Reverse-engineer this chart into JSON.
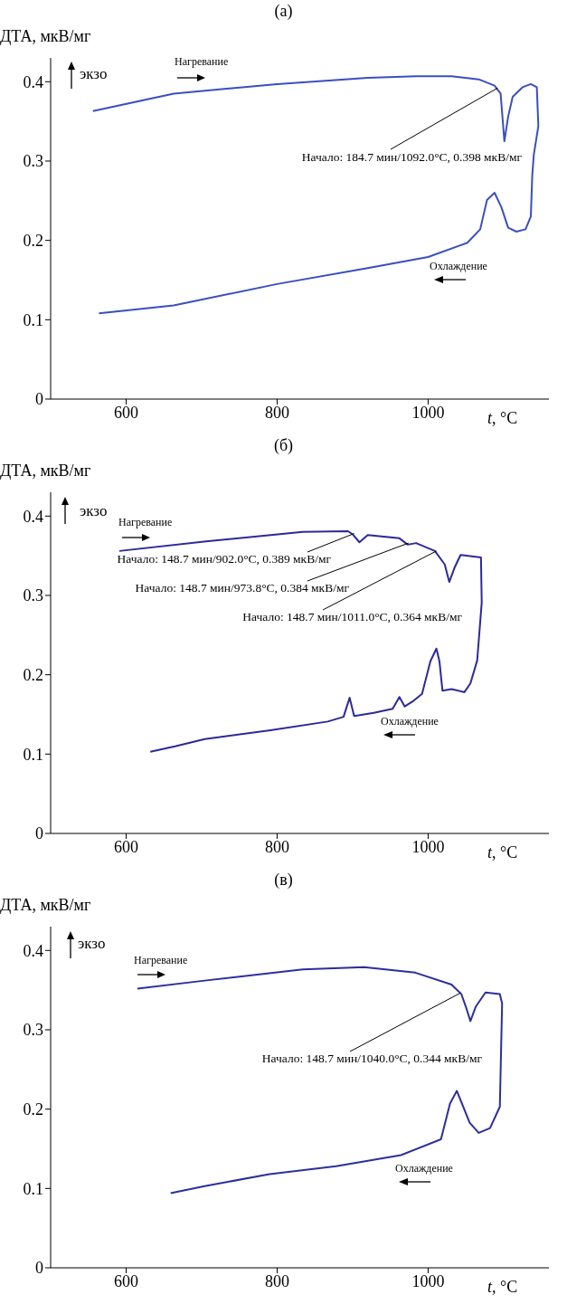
{
  "chart_data": [
    {
      "type": "line",
      "title": "(а)",
      "xlabel": "t, °C",
      "ylabel": "ДТА, мкВ/мг",
      "xlim": [
        500,
        1160
      ],
      "xticks": [
        600,
        800,
        1000
      ],
      "ylim": [
        0,
        0.43
      ],
      "yticks": [
        0,
        0.1,
        0.2,
        0.3,
        0.4
      ],
      "marker": "none",
      "series": [
        {
          "color": "#3a4fc0",
          "x": [
            556,
            663,
            800,
            920,
            984,
            1031,
            1067,
            1088,
            1096,
            1101,
            1106,
            1112,
            1125,
            1136,
            1144,
            1146,
            1140,
            1138,
            1136,
            1129,
            1117,
            1106,
            1097,
            1088,
            1078,
            1069,
            1052,
            1000,
            920,
            800,
            663,
            564
          ],
          "values": [
            0.363,
            0.385,
            0.397,
            0.405,
            0.407,
            0.407,
            0.403,
            0.395,
            0.385,
            0.325,
            0.356,
            0.381,
            0.393,
            0.397,
            0.393,
            0.344,
            0.308,
            0.283,
            0.23,
            0.214,
            0.211,
            0.216,
            0.242,
            0.26,
            0.251,
            0.214,
            0.197,
            0.179,
            0.165,
            0.145,
            0.118,
            0.108
          ]
        }
      ],
      "annotations": [
        "экзо",
        "Нагревание",
        "Охлаждение",
        {
          "text": "Начало: 184.7 мин/1092.0°C, 0.398 мкВ/мг",
          "x": 1092,
          "y": 0.392
        }
      ]
    },
    {
      "type": "line",
      "title": "(б)",
      "xlabel": "t, °C",
      "ylabel": "ДТА, мкВ/мг",
      "xlim": [
        500,
        1160
      ],
      "xticks": [
        600,
        800,
        1000
      ],
      "ylim": [
        0,
        0.43
      ],
      "yticks": [
        0,
        0.1,
        0.2,
        0.3,
        0.4
      ],
      "marker": "none",
      "series": [
        {
          "color": "#2b2a9a",
          "x": [
            591,
            706,
            834,
            894,
            900,
            909,
            920,
            962,
            973,
            984,
            1009,
            1022,
            1028,
            1035,
            1043,
            1070,
            1071,
            1065,
            1056,
            1048,
            1031,
            1019,
            1015,
            1011,
            1003,
            992,
            979,
            969,
            962,
            953,
            928,
            902,
            896,
            888,
            867,
            791,
            704,
            666,
            632
          ],
          "values": [
            0.356,
            0.368,
            0.38,
            0.381,
            0.377,
            0.367,
            0.376,
            0.372,
            0.364,
            0.366,
            0.356,
            0.339,
            0.317,
            0.335,
            0.351,
            0.348,
            0.291,
            0.218,
            0.189,
            0.178,
            0.182,
            0.18,
            0.217,
            0.233,
            0.217,
            0.176,
            0.166,
            0.16,
            0.172,
            0.157,
            0.152,
            0.148,
            0.171,
            0.147,
            0.141,
            0.13,
            0.119,
            0.11,
            0.103
          ]
        }
      ],
      "annotations": [
        "экзо",
        "Нагревание",
        "Охлаждение",
        {
          "text": "Начало: 148.7 мин/902.0°C, 0.389 мкВ/мг",
          "x": 902,
          "y": 0.378
        },
        {
          "text": "Начало: 148.7 мин/973.8°C, 0.384 мкВ/мг",
          "x": 974,
          "y": 0.366
        },
        {
          "text": "Начало: 148.7 мин/1011.0°C, 0.364 мкВ/мг",
          "x": 1011,
          "y": 0.356
        }
      ]
    },
    {
      "type": "line",
      "title": "(в)",
      "xlabel": "t, °C",
      "ylabel": "ДТА, мкВ/мг",
      "xlim": [
        500,
        1160
      ],
      "xticks": [
        600,
        800,
        1000
      ],
      "ylim": [
        0,
        0.43
      ],
      "yticks": [
        0,
        0.1,
        0.2,
        0.3,
        0.4
      ],
      "marker": "none",
      "series": [
        {
          "color": "#2c2f9e",
          "x": [
            615,
            704,
            834,
            915,
            983,
            1031,
            1044,
            1050,
            1056,
            1063,
            1076,
            1095,
            1098,
            1095,
            1082,
            1067,
            1055,
            1038,
            1029,
            1017,
            964,
            878,
            790,
            704,
            659
          ],
          "values": [
            0.352,
            0.362,
            0.376,
            0.379,
            0.372,
            0.357,
            0.345,
            0.329,
            0.311,
            0.329,
            0.347,
            0.345,
            0.333,
            0.203,
            0.176,
            0.17,
            0.183,
            0.223,
            0.207,
            0.162,
            0.142,
            0.128,
            0.118,
            0.103,
            0.094
          ]
        }
      ],
      "annotations": [
        "экзо",
        "Нагревание",
        "Охлаждение",
        {
          "text": "Начало: 148.7 мин/1040.0°C, 0.344 мкВ/мг",
          "x": 1042,
          "y": 0.346
        }
      ]
    }
  ]
}
